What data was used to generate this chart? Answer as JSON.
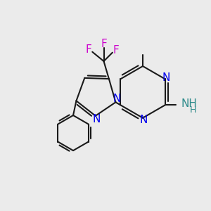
{
  "background_color": "#ebebeb",
  "atom_colors": {
    "N": "#0000ee",
    "F": "#cc00cc",
    "NH_teal": "#2e8b8b",
    "C": "#1a1a1a"
  },
  "bond_color": "#1a1a1a",
  "bond_width": 1.5,
  "fig_size": [
    3.0,
    3.0
  ],
  "dpi": 100,
  "font_size": 11,
  "font_size_small": 9
}
